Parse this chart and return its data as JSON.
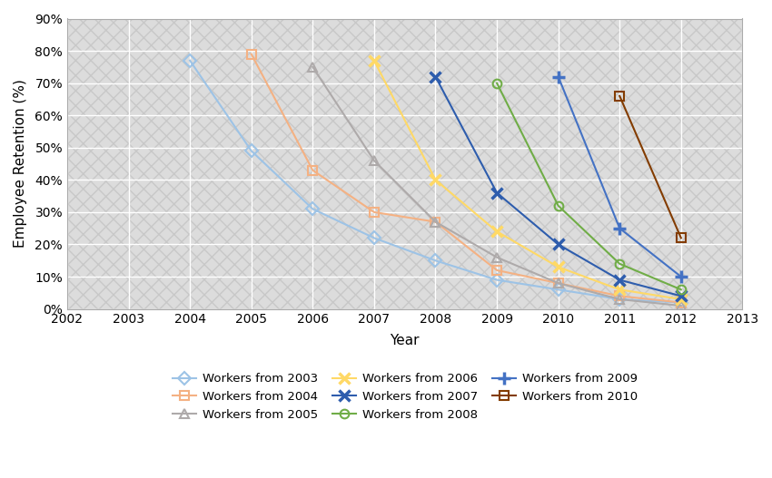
{
  "xlabel": "Year",
  "ylabel": "Employee Retention (%)",
  "xlim": [
    2002,
    2013
  ],
  "ylim": [
    0,
    0.9
  ],
  "xticks": [
    2002,
    2003,
    2004,
    2005,
    2006,
    2007,
    2008,
    2009,
    2010,
    2011,
    2012,
    2013
  ],
  "yticks": [
    0,
    0.1,
    0.2,
    0.3,
    0.4,
    0.5,
    0.6,
    0.7,
    0.8,
    0.9
  ],
  "series": [
    {
      "label": "Workers from 2003",
      "color": "#9DC3E6",
      "marker": "D",
      "markersize": 7,
      "linewidth": 1.5,
      "x": [
        2004,
        2005,
        2006,
        2007,
        2008,
        2009,
        2010,
        2011,
        2012
      ],
      "y": [
        0.77,
        0.49,
        0.31,
        0.22,
        0.15,
        0.09,
        0.06,
        0.03,
        0.02
      ]
    },
    {
      "label": "Workers from 2004",
      "color": "#F4B183",
      "marker": "s",
      "markersize": 7,
      "linewidth": 1.5,
      "x": [
        2005,
        2006,
        2007,
        2008,
        2009,
        2010,
        2011,
        2012
      ],
      "y": [
        0.79,
        0.43,
        0.3,
        0.27,
        0.12,
        0.08,
        0.04,
        0.02
      ]
    },
    {
      "label": "Workers from 2005",
      "color": "#AEAAAA",
      "marker": "^",
      "markersize": 7,
      "linewidth": 1.5,
      "x": [
        2006,
        2007,
        2008,
        2009,
        2010,
        2011,
        2012
      ],
      "y": [
        0.75,
        0.46,
        0.27,
        0.16,
        0.08,
        0.03,
        0.01
      ]
    },
    {
      "label": "Workers from 2006",
      "color": "#FFD966",
      "marker": "x",
      "markersize": 9,
      "linewidth": 1.5,
      "x": [
        2007,
        2008,
        2009,
        2010,
        2011,
        2012
      ],
      "y": [
        0.77,
        0.4,
        0.24,
        0.13,
        0.06,
        0.03
      ]
    },
    {
      "label": "Workers from 2007",
      "color": "#2E5DAD",
      "marker": "x",
      "markersize": 9,
      "linewidth": 1.5,
      "x": [
        2008,
        2009,
        2010,
        2011,
        2012
      ],
      "y": [
        0.72,
        0.36,
        0.2,
        0.09,
        0.04
      ]
    },
    {
      "label": "Workers from 2008",
      "color": "#70AD47",
      "marker": "o",
      "markersize": 7,
      "linewidth": 1.5,
      "x": [
        2009,
        2010,
        2011,
        2012
      ],
      "y": [
        0.7,
        0.32,
        0.14,
        0.06
      ]
    },
    {
      "label": "Workers from 2009",
      "color": "#4472C4",
      "marker": "+",
      "markersize": 10,
      "linewidth": 1.5,
      "x": [
        2010,
        2011,
        2012
      ],
      "y": [
        0.72,
        0.25,
        0.1
      ]
    },
    {
      "label": "Workers from 2010",
      "color": "#833C00",
      "marker": "s",
      "markersize": 7,
      "linewidth": 1.5,
      "x": [
        2011,
        2012
      ],
      "y": [
        0.66,
        0.22
      ]
    }
  ],
  "background_color": "#DCDCDC",
  "grid_color": "#FFFFFF",
  "legend_ncol": 3,
  "figsize": [
    8.5,
    5.27
  ]
}
